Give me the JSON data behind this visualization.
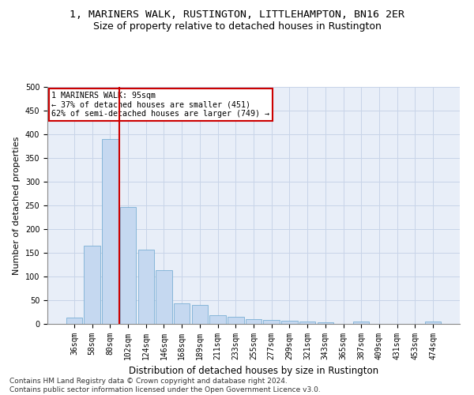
{
  "title": "1, MARINERS WALK, RUSTINGTON, LITTLEHAMPTON, BN16 2ER",
  "subtitle": "Size of property relative to detached houses in Rustington",
  "xlabel": "Distribution of detached houses by size in Rustington",
  "ylabel": "Number of detached properties",
  "categories": [
    "36sqm",
    "58sqm",
    "80sqm",
    "102sqm",
    "124sqm",
    "146sqm",
    "168sqm",
    "189sqm",
    "211sqm",
    "233sqm",
    "255sqm",
    "277sqm",
    "299sqm",
    "321sqm",
    "343sqm",
    "365sqm",
    "387sqm",
    "409sqm",
    "431sqm",
    "453sqm",
    "474sqm"
  ],
  "values": [
    13,
    165,
    390,
    247,
    157,
    113,
    44,
    40,
    19,
    15,
    10,
    9,
    6,
    5,
    4,
    0,
    5,
    0,
    0,
    0,
    5
  ],
  "bar_color": "#c5d8f0",
  "bar_edge_color": "#7aafd4",
  "vline_x_index": 2,
  "vline_color": "#cc0000",
  "annotation_text": "1 MARINERS WALK: 95sqm\n← 37% of detached houses are smaller (451)\n62% of semi-detached houses are larger (749) →",
  "annotation_box_color": "#ffffff",
  "annotation_box_edge": "#cc0000",
  "ylim": [
    0,
    500
  ],
  "yticks": [
    0,
    50,
    100,
    150,
    200,
    250,
    300,
    350,
    400,
    450,
    500
  ],
  "grid_color": "#c8d4e8",
  "background_color": "#e8eef8",
  "footer_line1": "Contains HM Land Registry data © Crown copyright and database right 2024.",
  "footer_line2": "Contains public sector information licensed under the Open Government Licence v3.0.",
  "title_fontsize": 9.5,
  "subtitle_fontsize": 9,
  "xlabel_fontsize": 8.5,
  "ylabel_fontsize": 8,
  "tick_fontsize": 7,
  "footer_fontsize": 6.5
}
